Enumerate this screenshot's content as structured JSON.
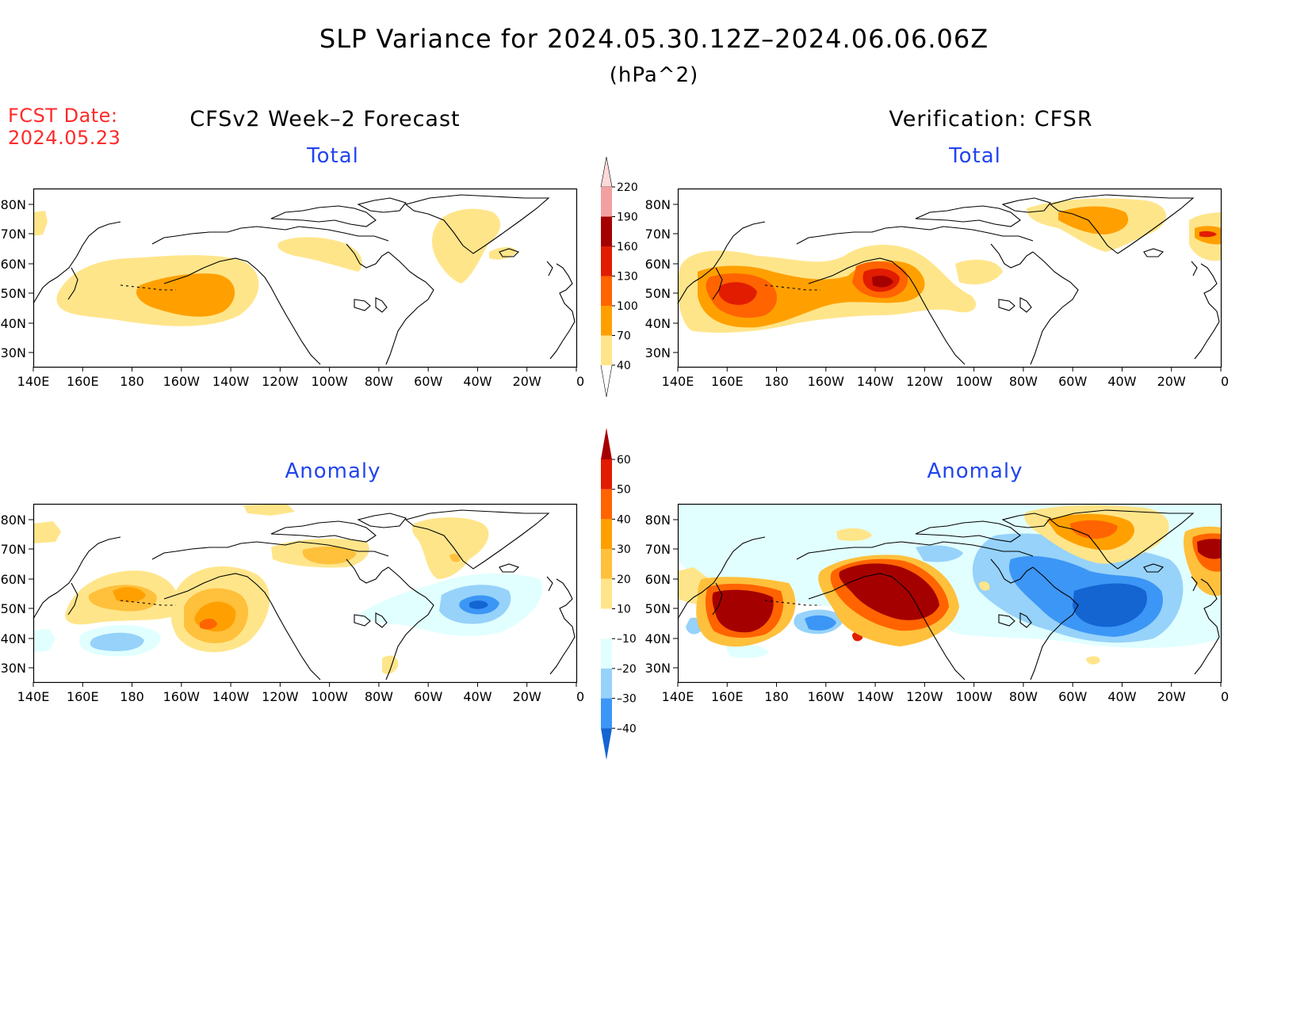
{
  "title": "SLP Variance for 2024.05.30.12Z–2024.06.06.06Z",
  "units": "(hPa^2)",
  "fcst_date_label": "FCST Date:",
  "fcst_date_value": "2024.05.23",
  "left_column_title": "CFSv2 Week–2 Forecast",
  "right_column_title": "Verification: CFSR",
  "panel_titles": {
    "fcst_total": "Total",
    "verif_total": "Total",
    "fcst_anom": "Anomaly",
    "verif_anom": "Anomaly"
  },
  "map": {
    "lat_ticks": [
      "80N",
      "70N",
      "60N",
      "50N",
      "40N",
      "30N"
    ],
    "lon_ticks": [
      "140E",
      "160E",
      "180",
      "160W",
      "140W",
      "120W",
      "100W",
      "80W",
      "60W",
      "40W",
      "20W",
      "0"
    ]
  },
  "colorbar_total": {
    "levels": [
      "40",
      "70",
      "100",
      "130",
      "160",
      "190",
      "220"
    ],
    "colors": [
      "#ffe58a",
      "#ffa000",
      "#ff6400",
      "#e11c00",
      "#a50000",
      "#f2a0a0",
      "#ffd9d9"
    ]
  },
  "colorbar_anomaly": {
    "levels": [
      "60",
      "50",
      "40",
      "30",
      "20",
      "10",
      "–10",
      "–20",
      "–30",
      "–40"
    ],
    "colors_top_to_bottom": [
      "#a50000",
      "#e11c00",
      "#ff6400",
      "#ffa000",
      "#ffc03c",
      "#ffe58a",
      "#ffffff",
      "#e1ffff",
      "#96d2fa",
      "#3c96f5",
      "#1464d2"
    ]
  },
  "chart_data": [
    {
      "type": "heatmap",
      "title": "Total",
      "panel": "CFSv2 Week–2 Forecast",
      "value_range_shown": [
        40,
        130
      ],
      "features": [
        {
          "lon": -170,
          "lat": 48,
          "value": 40
        },
        {
          "lon": -150,
          "lat": 49,
          "value": 100
        },
        {
          "lon": -70,
          "lat": 63,
          "value": 40
        },
        {
          "lon": -45,
          "lat": 70,
          "value": 40
        }
      ]
    },
    {
      "type": "heatmap",
      "title": "Total",
      "panel": "Verification: CFSR",
      "value_range_shown": [
        40,
        190
      ],
      "features": [
        {
          "lon": 170,
          "lat": 49,
          "value": 160
        },
        {
          "lon": -136,
          "lat": 53,
          "value": 190
        },
        {
          "lon": -45,
          "lat": 72,
          "value": 100
        },
        {
          "lon": -5,
          "lat": 69,
          "value": 130
        }
      ]
    },
    {
      "type": "heatmap",
      "title": "Anomaly",
      "panel": "CFSv2 Week–2 Forecast",
      "value_range_shown": [
        -40,
        40
      ],
      "features": [
        {
          "lon": -180,
          "lat": 56,
          "value": 30
        },
        {
          "lon": -150,
          "lat": 46,
          "value": 40
        },
        {
          "lon": -180,
          "lat": 39,
          "value": -20
        },
        {
          "lon": -42,
          "lat": 50,
          "value": -40
        },
        {
          "lon": -105,
          "lat": 68,
          "value": 30
        }
      ]
    },
    {
      "type": "heatmap",
      "title": "Anomaly",
      "panel": "Verification: CFSR",
      "value_range_shown": [
        -40,
        60
      ],
      "features": [
        {
          "lon": 168,
          "lat": 49,
          "value": 60
        },
        {
          "lon": -138,
          "lat": 56,
          "value": 60
        },
        {
          "lon": -45,
          "lat": 75,
          "value": 50
        },
        {
          "lon": -3,
          "lat": 70,
          "value": 60
        },
        {
          "lon": -45,
          "lat": 50,
          "value": -40
        },
        {
          "lon": -158,
          "lat": 43,
          "value": -30
        }
      ]
    }
  ]
}
